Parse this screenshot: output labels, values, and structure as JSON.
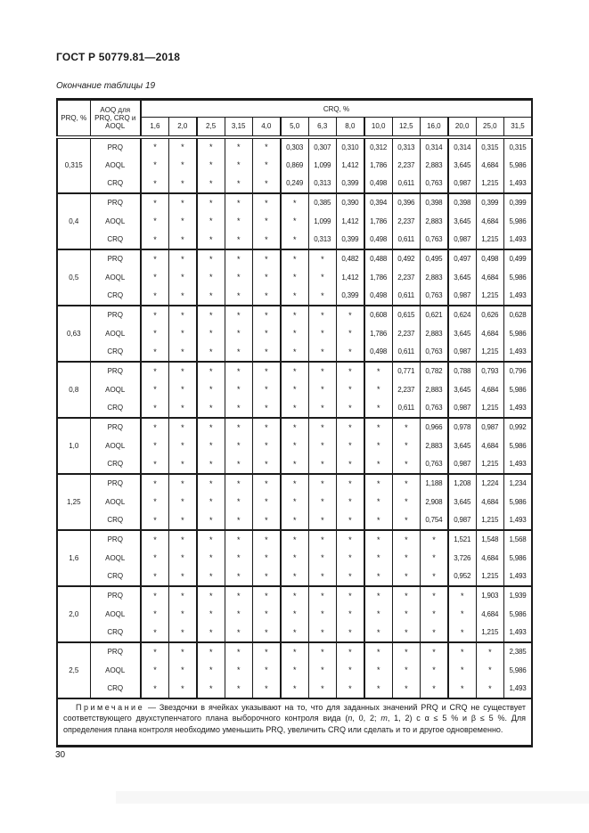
{
  "page": {
    "doc_title": "ГОСТ Р 50779.81—2018",
    "table_caption": "Окончание таблицы 19",
    "page_number": "30"
  },
  "colors": {
    "text": "#1b1b1b",
    "background": "#ffffff",
    "border": "#1b1b1b"
  },
  "table": {
    "col1_header": "PRQ, %",
    "col2_header": "AOQ для PRQ, CRQ и AOQL",
    "group_header": "CRQ, %",
    "crq_columns": [
      "1,6",
      "2,0",
      "2,5",
      "3,15",
      "4,0",
      "5,0",
      "6,3",
      "8,0",
      "10,0",
      "12,5",
      "16,0",
      "20,0",
      "25,0",
      "31,5"
    ],
    "row_labels": [
      "PRQ",
      "AOQL",
      "CRQ"
    ],
    "star": "*",
    "groups": [
      {
        "prq": "0,315",
        "rows": [
          [
            "*",
            "*",
            "*",
            "*",
            "*",
            "0,303",
            "0,307",
            "0,310",
            "0,312",
            "0,313",
            "0,314",
            "0,314",
            "0,315",
            "0,315"
          ],
          [
            "*",
            "*",
            "*",
            "*",
            "*",
            "0,869",
            "1,099",
            "1,412",
            "1,786",
            "2,237",
            "2,883",
            "3,645",
            "4,684",
            "5,986"
          ],
          [
            "*",
            "*",
            "*",
            "*",
            "*",
            "0,249",
            "0,313",
            "0,399",
            "0,498",
            "0,611",
            "0,763",
            "0,987",
            "1,215",
            "1,493"
          ]
        ]
      },
      {
        "prq": "0,4",
        "rows": [
          [
            "*",
            "*",
            "*",
            "*",
            "*",
            "*",
            "0,385",
            "0,390",
            "0,394",
            "0,396",
            "0,398",
            "0,398",
            "0,399",
            "0,399"
          ],
          [
            "*",
            "*",
            "*",
            "*",
            "*",
            "*",
            "1,099",
            "1,412",
            "1,786",
            "2,237",
            "2,883",
            "3,645",
            "4,684",
            "5,986"
          ],
          [
            "*",
            "*",
            "*",
            "*",
            "*",
            "*",
            "0,313",
            "0,399",
            "0,498",
            "0,611",
            "0,763",
            "0,987",
            "1,215",
            "1,493"
          ]
        ]
      },
      {
        "prq": "0,5",
        "rows": [
          [
            "*",
            "*",
            "*",
            "*",
            "*",
            "*",
            "*",
            "0,482",
            "0,488",
            "0,492",
            "0,495",
            "0,497",
            "0,498",
            "0,499"
          ],
          [
            "*",
            "*",
            "*",
            "*",
            "*",
            "*",
            "*",
            "1,412",
            "1,786",
            "2,237",
            "2,883",
            "3,645",
            "4,684",
            "5,986"
          ],
          [
            "*",
            "*",
            "*",
            "*",
            "*",
            "*",
            "*",
            "0,399",
            "0,498",
            "0,611",
            "0,763",
            "0,987",
            "1,215",
            "1,493"
          ]
        ]
      },
      {
        "prq": "0,63",
        "rows": [
          [
            "*",
            "*",
            "*",
            "*",
            "*",
            "*",
            "*",
            "*",
            "0,608",
            "0,615",
            "0,621",
            "0,624",
            "0,626",
            "0,628"
          ],
          [
            "*",
            "*",
            "*",
            "*",
            "*",
            "*",
            "*",
            "*",
            "1,786",
            "2,237",
            "2,883",
            "3,645",
            "4,684",
            "5,986"
          ],
          [
            "*",
            "*",
            "*",
            "*",
            "*",
            "*",
            "*",
            "*",
            "0,498",
            "0,611",
            "0,763",
            "0,987",
            "1,215",
            "1,493"
          ]
        ]
      },
      {
        "prq": "0,8",
        "rows": [
          [
            "*",
            "*",
            "*",
            "*",
            "*",
            "*",
            "*",
            "*",
            "*",
            "0,771",
            "0,782",
            "0,788",
            "0,793",
            "0,796"
          ],
          [
            "*",
            "*",
            "*",
            "*",
            "*",
            "*",
            "*",
            "*",
            "*",
            "2,237",
            "2,883",
            "3,645",
            "4,684",
            "5,986"
          ],
          [
            "*",
            "*",
            "*",
            "*",
            "*",
            "*",
            "*",
            "*",
            "*",
            "0,611",
            "0,763",
            "0,987",
            "1,215",
            "1,493"
          ]
        ]
      },
      {
        "prq": "1,0",
        "rows": [
          [
            "*",
            "*",
            "*",
            "*",
            "*",
            "*",
            "*",
            "*",
            "*",
            "*",
            "0,966",
            "0,978",
            "0,987",
            "0,992"
          ],
          [
            "*",
            "*",
            "*",
            "*",
            "*",
            "*",
            "*",
            "*",
            "*",
            "*",
            "2,883",
            "3,645",
            "4,684",
            "5,986"
          ],
          [
            "*",
            "*",
            "*",
            "*",
            "*",
            "*",
            "*",
            "*",
            "*",
            "*",
            "0,763",
            "0,987",
            "1,215",
            "1,493"
          ]
        ]
      },
      {
        "prq": "1,25",
        "rows": [
          [
            "*",
            "*",
            "*",
            "*",
            "*",
            "*",
            "*",
            "*",
            "*",
            "*",
            "1,188",
            "1,208",
            "1,224",
            "1,234"
          ],
          [
            "*",
            "*",
            "*",
            "*",
            "*",
            "*",
            "*",
            "*",
            "*",
            "*",
            "2,908",
            "3,645",
            "4,684",
            "5,986"
          ],
          [
            "*",
            "*",
            "*",
            "*",
            "*",
            "*",
            "*",
            "*",
            "*",
            "*",
            "0,754",
            "0,987",
            "1,215",
            "1,493"
          ]
        ]
      },
      {
        "prq": "1,6",
        "rows": [
          [
            "*",
            "*",
            "*",
            "*",
            "*",
            "*",
            "*",
            "*",
            "*",
            "*",
            "*",
            "1,521",
            "1,548",
            "1,568"
          ],
          [
            "*",
            "*",
            "*",
            "*",
            "*",
            "*",
            "*",
            "*",
            "*",
            "*",
            "*",
            "3,726",
            "4,684",
            "5,986"
          ],
          [
            "*",
            "*",
            "*",
            "*",
            "*",
            "*",
            "*",
            "*",
            "*",
            "*",
            "*",
            "0,952",
            "1,215",
            "1,493"
          ]
        ]
      },
      {
        "prq": "2,0",
        "rows": [
          [
            "*",
            "*",
            "*",
            "*",
            "*",
            "*",
            "*",
            "*",
            "*",
            "*",
            "*",
            "*",
            "1,903",
            "1,939"
          ],
          [
            "*",
            "*",
            "*",
            "*",
            "*",
            "*",
            "*",
            "*",
            "*",
            "*",
            "*",
            "*",
            "4,684",
            "5,986"
          ],
          [
            "*",
            "*",
            "*",
            "*",
            "*",
            "*",
            "*",
            "*",
            "*",
            "*",
            "*",
            "*",
            "1,215",
            "1,493"
          ]
        ]
      },
      {
        "prq": "2,5",
        "rows": [
          [
            "*",
            "*",
            "*",
            "*",
            "*",
            "*",
            "*",
            "*",
            "*",
            "*",
            "*",
            "*",
            "*",
            "2,385"
          ],
          [
            "*",
            "*",
            "*",
            "*",
            "*",
            "*",
            "*",
            "*",
            "*",
            "*",
            "*",
            "*",
            "*",
            "5,986"
          ],
          [
            "*",
            "*",
            "*",
            "*",
            "*",
            "*",
            "*",
            "*",
            "*",
            "*",
            "*",
            "*",
            "*",
            "1,493"
          ]
        ]
      }
    ]
  },
  "note": {
    "label": "Примечание",
    "segments": [
      {
        "text": " — Звездочки в ячейках указывают на то, что для заданных значений PRQ и CRQ не существует соответствующего двухступенчатого плана выборочного контроля вида (",
        "style": "normal"
      },
      {
        "text": "n",
        "style": "italic"
      },
      {
        "text": ", 0, 2; ",
        "style": "normal"
      },
      {
        "text": "m",
        "style": "italic"
      },
      {
        "text": ", 1, 2) с α ≤ 5 % и β ≤ 5 %. Для определения плана контроля необходимо уменьшить PRQ, увеличить CRQ или сделать и то и другое одновременно.",
        "style": "normal"
      }
    ]
  }
}
